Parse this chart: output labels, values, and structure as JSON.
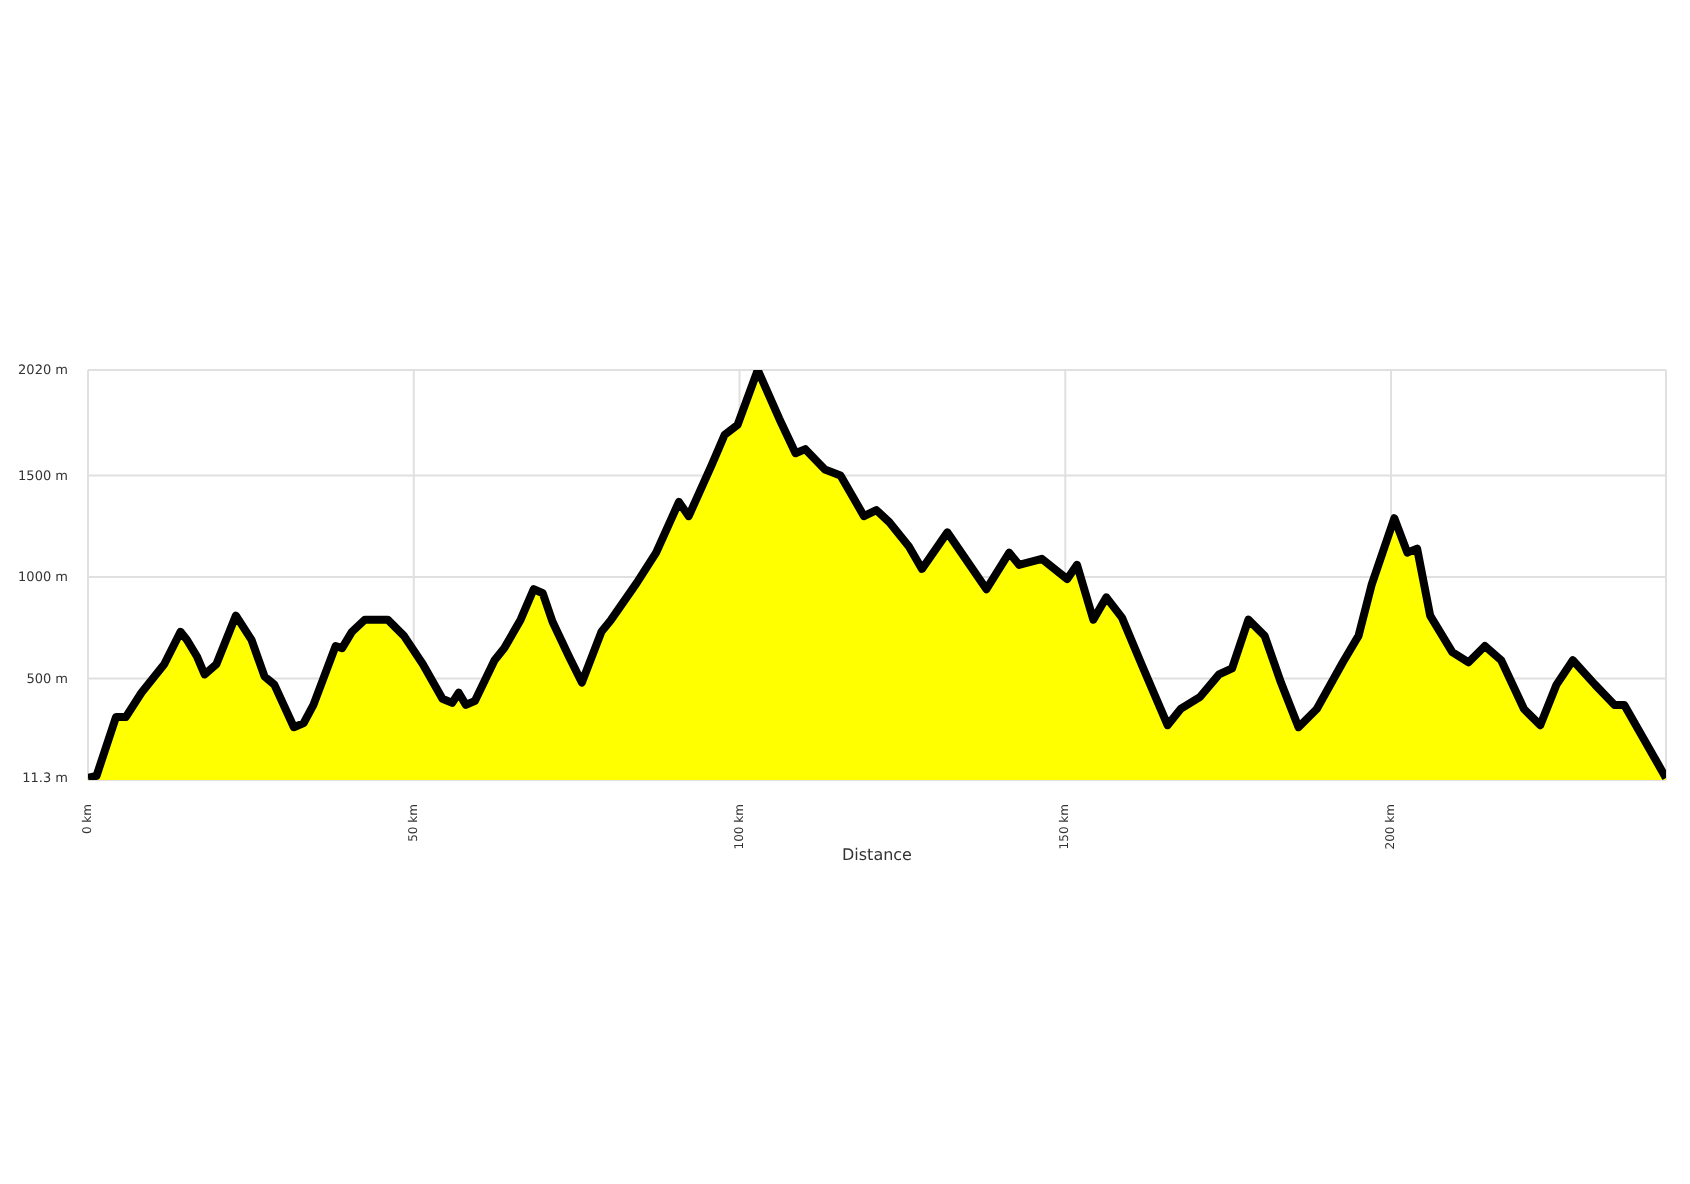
{
  "chart_data": {
    "type": "area",
    "xlabel": "Distance",
    "grid": true,
    "legend": false,
    "xlim": [
      0,
      242.2
    ],
    "ylim": [
      0,
      2020
    ],
    "xticks": [
      {
        "value": 0,
        "label": "0 km"
      },
      {
        "value": 50,
        "label": "50 km"
      },
      {
        "value": 100,
        "label": "100 km"
      },
      {
        "value": 150,
        "label": "150 km"
      },
      {
        "value": 200,
        "label": "200 km"
      }
    ],
    "yticks": [
      {
        "value": 11.3,
        "label": "11.3 m"
      },
      {
        "value": 500,
        "label": "500 m"
      },
      {
        "value": 1000,
        "label": "1000 m"
      },
      {
        "value": 1500,
        "label": "1500 m"
      },
      {
        "value": 2020,
        "label": "2020 m"
      }
    ],
    "x": [
      0,
      1.3,
      4.3,
      5.8,
      8.2,
      11.7,
      14.2,
      15.2,
      16.7,
      17.9,
      19.7,
      22.7,
      25.1,
      27.1,
      28.6,
      31.6,
      33.1,
      34.6,
      38.0,
      39.0,
      40.5,
      42.5,
      45.0,
      46.0,
      48.5,
      51.4,
      54.4,
      55.9,
      56.9,
      58.0,
      59.4,
      62.4,
      63.9,
      66.4,
      68.4,
      69.8,
      71.3,
      73.8,
      75.8,
      78.8,
      80.3,
      84.2,
      87.2,
      90.7,
      92.2,
      95.7,
      97.7,
      99.7,
      102.8,
      106.1,
      108.6,
      110.1,
      113.1,
      115.5,
      119.1,
      121.0,
      123.0,
      126.0,
      128.0,
      131.9,
      137.9,
      141.4,
      142.9,
      146.4,
      150.3,
      151.8,
      154.3,
      156.3,
      158.7,
      161.7,
      165.7,
      167.7,
      170.7,
      173.6,
      175.6,
      178.1,
      180.6,
      183.1,
      185.8,
      188.6,
      192.6,
      195.0,
      197.0,
      200.5,
      202.5,
      204.0,
      206.0,
      209.4,
      211.9,
      214.4,
      216.9,
      220.4,
      222.9,
      225.4,
      227.9,
      231.3,
      234.3,
      235.8,
      242.2
    ],
    "series": [
      {
        "color": "#ffff00",
        "values": [
          10,
          20,
          310,
          310,
          430,
          570,
          730,
          690,
          610,
          520,
          570,
          810,
          690,
          510,
          470,
          260,
          280,
          370,
          660,
          650,
          730,
          790,
          790,
          790,
          710,
          570,
          400,
          380,
          430,
          370,
          390,
          590,
          650,
          790,
          940,
          920,
          780,
          610,
          480,
          730,
          790,
          970,
          1120,
          1370,
          1300,
          1550,
          1700,
          1750,
          2020,
          1780,
          1610,
          1630,
          1530,
          1500,
          1300,
          1330,
          1270,
          1150,
          1040,
          1220,
          940,
          1120,
          1060,
          1090,
          990,
          1060,
          790,
          900,
          800,
          570,
          270,
          350,
          410,
          520,
          550,
          790,
          710,
          480,
          260,
          350,
          580,
          710,
          960,
          1290,
          1120,
          1140,
          810,
          630,
          580,
          660,
          590,
          350,
          270,
          470,
          590,
          470,
          370,
          370,
          10
        ]
      }
    ]
  }
}
